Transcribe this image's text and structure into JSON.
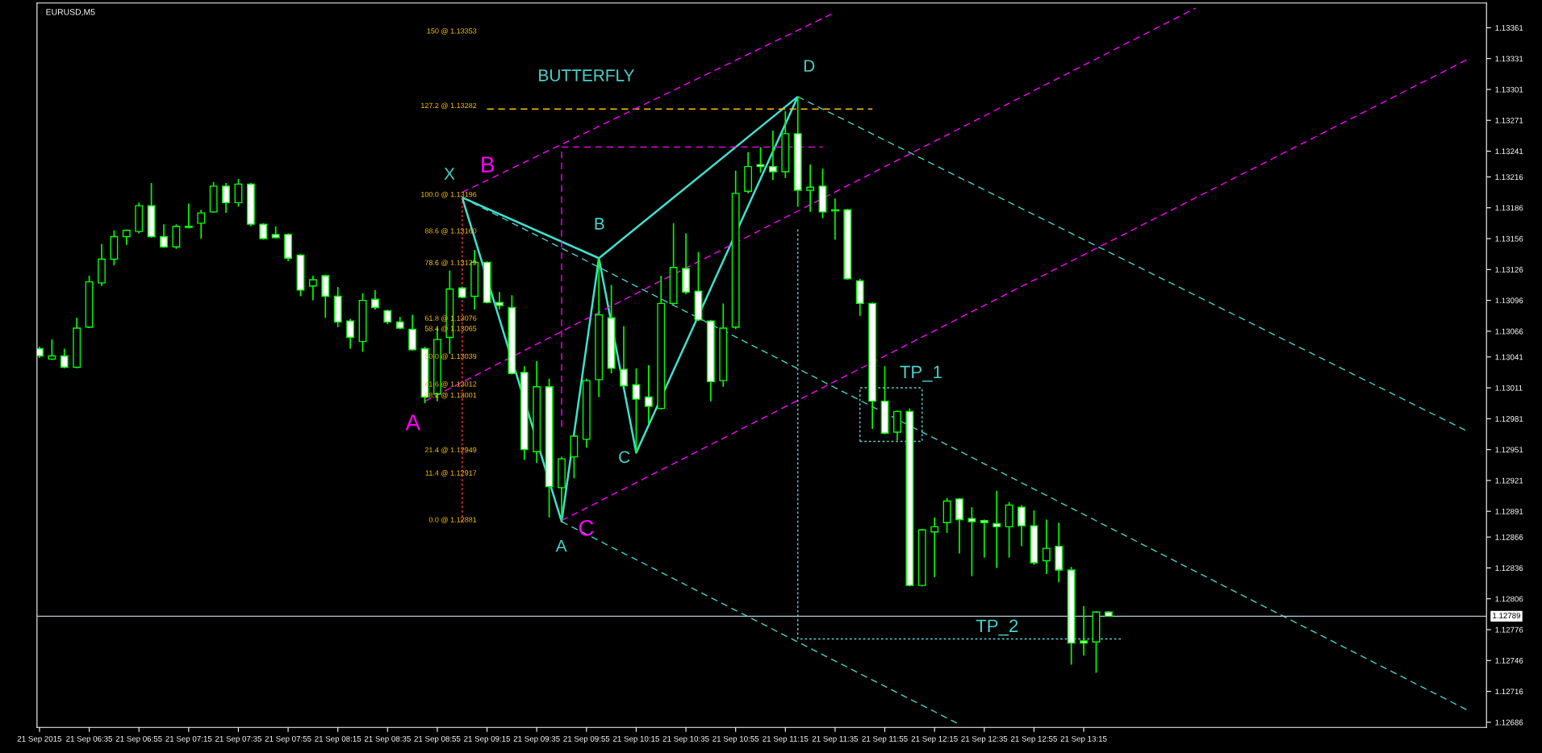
{
  "chart_data": {
    "type": "candlestick",
    "title": "EURUSD,M5",
    "x": [
      "2015-09-21T06:15",
      "2015-09-21T06:20",
      "2015-09-21T06:25",
      "2015-09-21T06:30",
      "2015-09-21T06:35",
      "2015-09-21T06:40",
      "2015-09-21T06:45",
      "2015-09-21T06:50",
      "2015-09-21T06:55",
      "2015-09-21T07:00",
      "2015-09-21T07:05",
      "2015-09-21T07:10",
      "2015-09-21T07:15",
      "2015-09-21T07:20",
      "2015-09-21T07:25",
      "2015-09-21T07:30",
      "2015-09-21T07:35",
      "2015-09-21T07:40",
      "2015-09-21T07:45",
      "2015-09-21T07:50",
      "2015-09-21T07:55",
      "2015-09-21T08:00",
      "2015-09-21T08:05",
      "2015-09-21T08:10",
      "2015-09-21T08:15",
      "2015-09-21T08:20",
      "2015-09-21T08:25",
      "2015-09-21T08:30",
      "2015-09-21T08:35",
      "2015-09-21T08:40",
      "2015-09-21T08:45",
      "2015-09-21T08:50",
      "2015-09-21T08:55",
      "2015-09-21T09:00",
      "2015-09-21T09:05",
      "2015-09-21T09:10",
      "2015-09-21T09:15",
      "2015-09-21T09:20",
      "2015-09-21T09:25",
      "2015-09-21T09:30",
      "2015-09-21T09:35",
      "2015-09-21T09:40",
      "2015-09-21T09:45",
      "2015-09-21T09:50",
      "2015-09-21T09:55",
      "2015-09-21T10:00",
      "2015-09-21T10:05",
      "2015-09-21T10:10",
      "2015-09-21T10:15",
      "2015-09-21T10:20",
      "2015-09-21T10:25",
      "2015-09-21T10:30",
      "2015-09-21T10:35",
      "2015-09-21T10:40",
      "2015-09-21T10:45",
      "2015-09-21T10:50",
      "2015-09-21T10:55",
      "2015-09-21T11:00",
      "2015-09-21T11:05",
      "2015-09-21T11:10",
      "2015-09-21T11:15",
      "2015-09-21T11:20",
      "2015-09-21T11:25",
      "2015-09-21T11:30",
      "2015-09-21T11:35",
      "2015-09-21T11:40",
      "2015-09-21T11:45",
      "2015-09-21T11:50",
      "2015-09-21T11:55",
      "2015-09-21T12:00",
      "2015-09-21T12:05",
      "2015-09-21T12:10",
      "2015-09-21T12:15",
      "2015-09-21T12:20",
      "2015-09-21T12:25",
      "2015-09-21T12:30",
      "2015-09-21T12:35",
      "2015-09-21T12:40",
      "2015-09-21T12:45",
      "2015-09-21T12:50",
      "2015-09-21T12:55",
      "2015-09-21T13:00",
      "2015-09-21T13:05",
      "2015-09-21T13:10",
      "2015-09-21T13:15",
      "2015-09-21T13:20",
      "2015-09-21T13:25"
    ],
    "ohlc": [
      [
        1.13049,
        1.13051,
        1.1304,
        1.13042
      ],
      [
        1.13039,
        1.13058,
        1.13038,
        1.13042
      ],
      [
        1.13042,
        1.13049,
        1.1303,
        1.13031
      ],
      [
        1.13031,
        1.13079,
        1.1303,
        1.13069
      ],
      [
        1.1307,
        1.1312,
        1.13069,
        1.13114
      ],
      [
        1.13113,
        1.13151,
        1.1311,
        1.13136
      ],
      [
        1.13136,
        1.13164,
        1.1313,
        1.13158
      ],
      [
        1.13158,
        1.13165,
        1.1315,
        1.13164
      ],
      [
        1.13163,
        1.13191,
        1.13161,
        1.13188
      ],
      [
        1.13188,
        1.1321,
        1.13157,
        1.13158
      ],
      [
        1.13158,
        1.1317,
        1.13147,
        1.13148
      ],
      [
        1.13148,
        1.1317,
        1.13146,
        1.13168
      ],
      [
        1.13167,
        1.1319,
        1.13166,
        1.13168
      ],
      [
        1.13171,
        1.13184,
        1.13156,
        1.13181
      ],
      [
        1.13182,
        1.13211,
        1.13181,
        1.13207
      ],
      [
        1.13207,
        1.1321,
        1.13181,
        1.13191
      ],
      [
        1.13191,
        1.13214,
        1.13187,
        1.13209
      ],
      [
        1.13209,
        1.1321,
        1.13168,
        1.1317
      ],
      [
        1.1317,
        1.13171,
        1.13155,
        1.13156
      ],
      [
        1.1316,
        1.13168,
        1.13156,
        1.13157
      ],
      [
        1.1316,
        1.13161,
        1.13134,
        1.13137
      ],
      [
        1.1314,
        1.13141,
        1.131,
        1.13106
      ],
      [
        1.1311,
        1.1312,
        1.13096,
        1.13116
      ],
      [
        1.1312,
        1.13121,
        1.13079,
        1.131
      ],
      [
        1.131,
        1.13109,
        1.1307,
        1.13075
      ],
      [
        1.13076,
        1.13078,
        1.13049,
        1.1306
      ],
      [
        1.13056,
        1.13103,
        1.13046,
        1.13096
      ],
      [
        1.13097,
        1.13106,
        1.13087,
        1.13089
      ],
      [
        1.13086,
        1.13087,
        1.13073,
        1.13075
      ],
      [
        1.13075,
        1.1308,
        1.13068,
        1.13069
      ],
      [
        1.13068,
        1.13082,
        1.13047,
        1.13048
      ],
      [
        1.13049,
        1.13051,
        1.12996,
        1.13002
      ],
      [
        1.13005,
        1.13069,
        1.12998,
        1.13058
      ],
      [
        1.1306,
        1.13125,
        1.13044,
        1.13107
      ],
      [
        1.13108,
        1.13109,
        1.13098,
        1.13099
      ],
      [
        1.131,
        1.13145,
        1.13087,
        1.13133
      ],
      [
        1.13133,
        1.13134,
        1.13093,
        1.13094
      ],
      [
        1.13094,
        1.13104,
        1.13087,
        1.13091
      ],
      [
        1.13089,
        1.13101,
        1.13024,
        1.13025
      ],
      [
        1.13026,
        1.13032,
        1.12941,
        1.12951
      ],
      [
        1.12949,
        1.13037,
        1.12938,
        1.13012
      ],
      [
        1.13012,
        1.1302,
        1.12885,
        1.12915
      ],
      [
        1.12914,
        1.12944,
        1.12881,
        1.12942
      ],
      [
        1.12944,
        1.12965,
        1.12923,
        1.12964
      ],
      [
        1.12961,
        1.1302,
        1.12953,
        1.13018
      ],
      [
        1.13019,
        1.13137,
        1.13002,
        1.13082
      ],
      [
        1.13079,
        1.13111,
        1.13025,
        1.1303
      ],
      [
        1.13029,
        1.13071,
        1.13012,
        1.13013
      ],
      [
        1.13014,
        1.1303,
        1.12948,
        1.13
      ],
      [
        1.13002,
        1.13033,
        1.12976,
        1.12993
      ],
      [
        1.12991,
        1.1312,
        1.1299,
        1.13093
      ],
      [
        1.13093,
        1.13171,
        1.13092,
        1.13128
      ],
      [
        1.13127,
        1.13161,
        1.13102,
        1.13104
      ],
      [
        1.13105,
        1.13143,
        1.13076,
        1.13077
      ],
      [
        1.13076,
        1.13077,
        1.12998,
        1.13017
      ],
      [
        1.13018,
        1.13093,
        1.13012,
        1.13069
      ],
      [
        1.1307,
        1.13222,
        1.13068,
        1.132
      ],
      [
        1.13202,
        1.1324,
        1.132,
        1.13226
      ],
      [
        1.13228,
        1.13245,
        1.1322,
        1.13226
      ],
      [
        1.13226,
        1.13261,
        1.13213,
        1.13221
      ],
      [
        1.13221,
        1.1328,
        1.13215,
        1.13258
      ],
      [
        1.13258,
        1.13294,
        1.13187,
        1.13203
      ],
      [
        1.13203,
        1.13228,
        1.13182,
        1.13206
      ],
      [
        1.13207,
        1.13224,
        1.13176,
        1.13182
      ],
      [
        1.13184,
        1.13195,
        1.13155,
        1.13183
      ],
      [
        1.13184,
        1.13185,
        1.13116,
        1.13117
      ],
      [
        1.13115,
        1.13117,
        1.13081,
        1.13093
      ],
      [
        1.13093,
        1.13094,
        1.12971,
        1.12998
      ],
      [
        1.12998,
        1.13032,
        1.12966,
        1.12967
      ],
      [
        1.12968,
        1.12989,
        1.1296,
        1.12988
      ],
      [
        1.12988,
        1.12991,
        1.12818,
        1.12819
      ],
      [
        1.12819,
        1.12874,
        1.12818,
        1.12873
      ],
      [
        1.12871,
        1.12885,
        1.12827,
        1.12876
      ],
      [
        1.1288,
        1.12904,
        1.1287,
        1.12901
      ],
      [
        1.12903,
        1.12904,
        1.1285,
        1.12883
      ],
      [
        1.12884,
        1.12895,
        1.12828,
        1.12881
      ],
      [
        1.12882,
        1.12883,
        1.12846,
        1.1288
      ],
      [
        1.12879,
        1.12911,
        1.12836,
        1.12876
      ],
      [
        1.12876,
        1.129,
        1.12846,
        1.12897
      ],
      [
        1.12895,
        1.12897,
        1.12857,
        1.12877
      ],
      [
        1.12877,
        1.12892,
        1.12839,
        1.12841
      ],
      [
        1.12843,
        1.12883,
        1.1283,
        1.12855
      ],
      [
        1.12857,
        1.1288,
        1.12822,
        1.12834
      ],
      [
        1.12834,
        1.12837,
        1.12742,
        1.12763
      ],
      [
        1.12765,
        1.12799,
        1.12751,
        1.12763
      ],
      [
        1.12764,
        1.12794,
        1.12734,
        1.12793
      ],
      [
        1.12793,
        1.12794,
        1.12789,
        1.12789
      ]
    ],
    "series": [
      {
        "type": "line",
        "color": "#40e0d0",
        "line_style": "solid",
        "x": [
          "2015-09-21T09:05",
          "2015-09-21T09:45",
          "2015-09-21T10:00",
          "2015-09-21T10:15",
          "2015-09-21T11:20"
        ],
        "values": [
          1.13196,
          1.12881,
          1.13137,
          1.12948,
          1.13294
        ]
      },
      {
        "type": "line",
        "color": "#40e0d0",
        "line_style": "solid",
        "x": [
          "2015-09-21T09:05",
          "2015-09-21T10:00",
          "2015-09-21T11:20"
        ],
        "values": [
          1.13196,
          1.13137,
          1.13294
        ]
      },
      {
        "type": "line",
        "color": "#ff3030",
        "line_style": "dotted",
        "x": [
          "2015-09-21T09:05",
          "2015-09-21T09:05"
        ],
        "values": [
          1.12881,
          1.13196
        ]
      },
      {
        "type": "line",
        "color": "#ffc000",
        "line_style": "dashed",
        "x": [
          "2015-09-21T09:15",
          "2015-09-21T11:50"
        ],
        "values": [
          1.13282,
          1.13282
        ]
      },
      {
        "type": "line",
        "color": "#ff00ff",
        "line_style": "dashed",
        "x": [
          "2015-09-21T09:45",
          "2015-09-21T09:45",
          "2015-09-21T11:30"
        ],
        "values": [
          1.12973,
          1.13245,
          1.13245
        ]
      },
      {
        "type": "line",
        "color": "#ff00ff",
        "line_style": "dashed",
        "x": [
          "2015-09-21T08:50",
          "2015-09-21T14:00"
        ],
        "values": [
          1.12998,
          1.1338
        ]
      },
      {
        "type": "line",
        "color": "#ff00ff",
        "line_style": "dashed",
        "x": [
          "2015-09-21T09:05",
          "2015-09-21T11:35"
        ],
        "values": [
          1.13201,
          1.13376
        ]
      },
      {
        "type": "line",
        "color": "#ff00ff",
        "line_style": "dashed",
        "x": [
          "2015-09-21T09:45",
          "2015-09-21T15:50"
        ],
        "values": [
          1.12882,
          1.13331
        ]
      },
      {
        "type": "line",
        "color": "#48d1cc",
        "line_style": "dashed",
        "x": [
          "2015-09-21T11:20",
          "2015-09-21T15:50"
        ],
        "values": [
          1.13294,
          1.12968
        ]
      },
      {
        "type": "line",
        "color": "#48d1cc",
        "line_style": "dashed",
        "x": [
          "2015-09-21T09:05",
          "2015-09-21T15:50"
        ],
        "values": [
          1.13196,
          1.12697
        ]
      },
      {
        "type": "line",
        "color": "#48d1cc",
        "line_style": "dashed",
        "x": [
          "2015-09-21T09:45",
          "2015-09-21T12:25"
        ],
        "values": [
          1.12881,
          1.12684
        ]
      },
      {
        "type": "line",
        "color": "#5fd3d3",
        "line_style": "dotted",
        "x": [
          "2015-09-21T11:20",
          "2015-09-21T11:20",
          "2015-09-21T13:30"
        ],
        "values": [
          1.13165,
          1.12767,
          1.12767
        ]
      },
      {
        "type": "line",
        "color": "#66cdcd",
        "line_style": "dotted",
        "x": [
          "2015-09-21T11:45",
          "2015-09-21T11:45",
          "2015-09-21T12:10"
        ],
        "values": [
          1.12959,
          1.13011,
          1.13011
        ]
      },
      {
        "type": "line",
        "color": "#66cdcd",
        "line_style": "dotted",
        "x": [
          "2015-09-21T11:45",
          "2015-09-21T12:10",
          "2015-09-21T12:10"
        ],
        "values": [
          1.12959,
          1.12959,
          1.13011
        ]
      }
    ],
    "ref_lines": [
      {
        "axis": "y",
        "value": 1.12789,
        "label": "1.12789",
        "color": "#b4c8d2"
      }
    ],
    "annotations": [
      "BUTTERFLY",
      "X",
      "A",
      "B",
      "C",
      "D",
      "TP_1",
      "TP_2",
      "A",
      "B",
      "C",
      "150 @ 1.13353",
      "127.2 @ 1.13282",
      "100.0 @ 1.13196",
      "88.6 @ 1.13160",
      "78.6 @ 1.13129",
      "61.8 @ 1.13076",
      "58.4 @ 1.13065",
      "50.0 @ 1.13039",
      "41.6 @ 1.13012",
      "38.2 @ 1.13001",
      "21.4 @ 1.12949",
      "11.4 @ 1.12917",
      "0.0 @ 1.12881"
    ],
    "xlim": [
      "2015-09-21T06:14",
      "2015-09-21T15:57"
    ],
    "xticks": [
      {
        "value": "2015-09-21T06:15",
        "label": "21 Sep 2015"
      },
      {
        "value": "2015-09-21T06:35",
        "label": "21 Sep 06:35"
      },
      {
        "value": "2015-09-21T06:55",
        "label": "21 Sep 06:55"
      },
      {
        "value": "2015-09-21T07:15",
        "label": "21 Sep 07:15"
      },
      {
        "value": "2015-09-21T07:35",
        "label": "21 Sep 07:35"
      },
      {
        "value": "2015-09-21T07:55",
        "label": "21 Sep 07:55"
      },
      {
        "value": "2015-09-21T08:15",
        "label": "21 Sep 08:15"
      },
      {
        "value": "2015-09-21T08:35",
        "label": "21 Sep 08:35"
      },
      {
        "value": "2015-09-21T08:55",
        "label": "21 Sep 08:55"
      },
      {
        "value": "2015-09-21T09:15",
        "label": "21 Sep 09:15"
      },
      {
        "value": "2015-09-21T09:35",
        "label": "21 Sep 09:35"
      },
      {
        "value": "2015-09-21T09:55",
        "label": "21 Sep 09:55"
      },
      {
        "value": "2015-09-21T10:15",
        "label": "21 Sep 10:15"
      },
      {
        "value": "2015-09-21T10:35",
        "label": "21 Sep 10:35"
      },
      {
        "value": "2015-09-21T10:55",
        "label": "21 Sep 10:55"
      },
      {
        "value": "2015-09-21T11:15",
        "label": "21 Sep 11:15"
      },
      {
        "value": "2015-09-21T11:35",
        "label": "21 Sep 11:35"
      },
      {
        "value": "2015-09-21T11:55",
        "label": "21 Sep 11:55"
      },
      {
        "value": "2015-09-21T12:15",
        "label": "21 Sep 12:15"
      },
      {
        "value": "2015-09-21T12:35",
        "label": "21 Sep 12:35"
      },
      {
        "value": "2015-09-21T12:55",
        "label": "21 Sep 12:55"
      },
      {
        "value": "2015-09-21T13:15",
        "label": "21 Sep 13:15"
      }
    ],
    "ylim": [
      1.12681,
      1.13385
    ],
    "yticks": [
      1.13361,
      1.13331,
      1.13301,
      1.13271,
      1.13241,
      1.13216,
      1.13186,
      1.13156,
      1.13126,
      1.13096,
      1.13066,
      1.13041,
      1.13011,
      1.12981,
      1.12951,
      1.12921,
      1.12891,
      1.12866,
      1.12836,
      1.12806,
      1.12776,
      1.12746,
      1.12716,
      1.12686
    ]
  }
}
